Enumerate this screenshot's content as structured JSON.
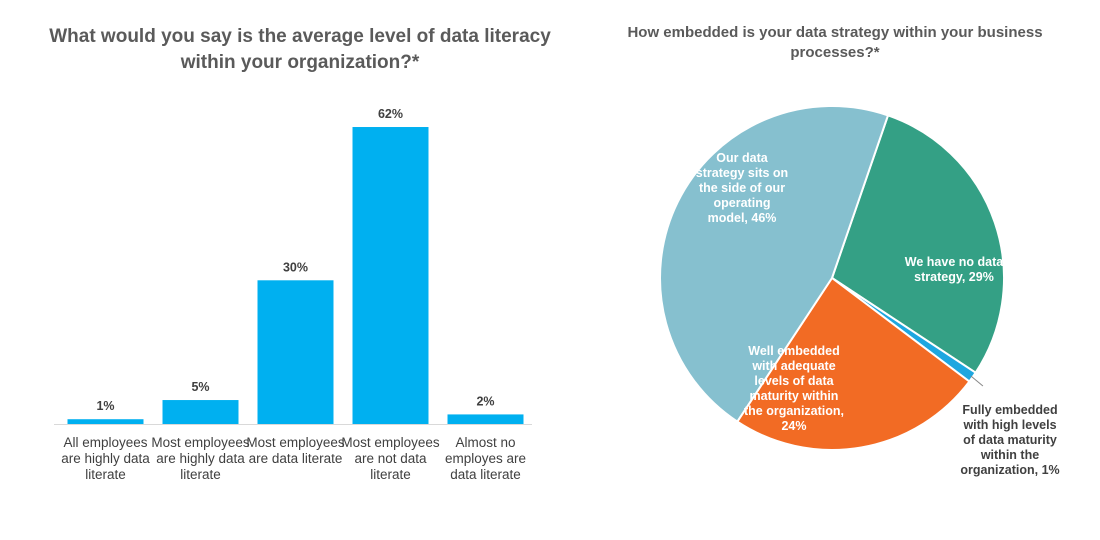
{
  "chart_data": [
    {
      "type": "bar",
      "title": "What would you say is the average level of data literacy within your organization?*",
      "categories": [
        [
          "All employees",
          "are highly data",
          "literate"
        ],
        [
          "Most employees",
          "are highly data",
          "literate"
        ],
        [
          "Most employees",
          "are data literate"
        ],
        [
          "Most employees",
          "are not data",
          "literate"
        ],
        [
          "Almost no",
          "employes are",
          "data literate"
        ]
      ],
      "values": [
        1,
        5,
        30,
        62,
        2
      ],
      "value_labels": [
        "1%",
        "5%",
        "30%",
        "62%",
        "2%"
      ],
      "color": "#00b0f0",
      "ylim": [
        0,
        70
      ],
      "xlabel": "",
      "ylabel": "",
      "grid": false
    },
    {
      "type": "pie",
      "title": "How embedded is your data strategy within your business processes?*",
      "slices": [
        {
          "name": "We have no data strategy",
          "value": 29,
          "color": "#34a085",
          "text_color": "#ffffff",
          "label_lines": [
            "We have no data",
            "strategy, 29%"
          ]
        },
        {
          "name": "Fully embedded with high levels of data maturity within the organization",
          "value": 1,
          "color": "#1ea7e0",
          "text_color": "#404040",
          "label_lines": [
            "Fully embedded",
            "with high levels",
            "of data maturity",
            "within the",
            "organization, 1%"
          ]
        },
        {
          "name": "Well embedded with adequate levels of data maturity within the organization",
          "value": 24,
          "color": "#f26b24",
          "text_color": "#ffffff",
          "label_lines": [
            "Well embedded",
            "with adequate",
            "levels of data",
            "maturity within",
            "the organization,",
            "24%"
          ]
        },
        {
          "name": "Our data strategy sits on the side of our operating model",
          "value": 46,
          "color": "#86c0cf",
          "text_color": "#ffffff",
          "label_lines": [
            "Our data",
            "strategy sits on",
            "the side of our",
            "operating",
            "model, 46%"
          ]
        }
      ]
    }
  ]
}
